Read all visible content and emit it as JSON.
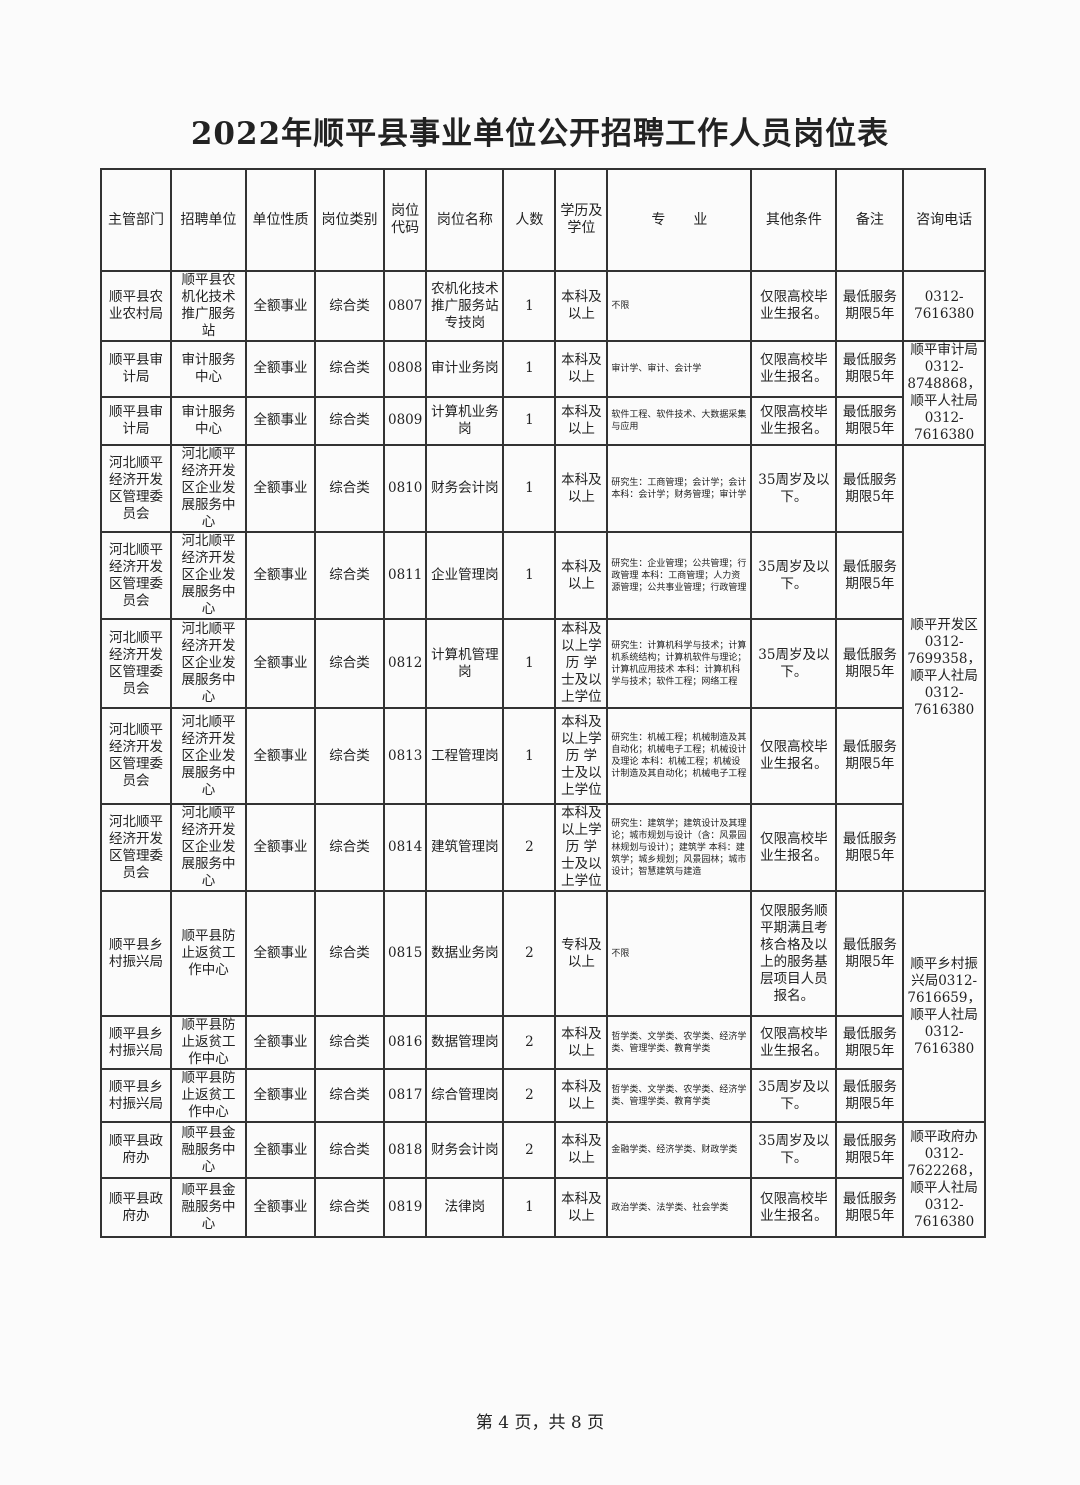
{
  "title": "2022年顺平县事业单位公开招聘工作人员岗位表",
  "headers": [
    "主管部门",
    "招聘单位",
    "单位性质",
    "岗位类别",
    "岗位代码",
    "岗位名称",
    "人数",
    "学历及学位",
    "专　　业",
    "其他条件",
    "备注",
    "咨询电话"
  ],
  "rows": [
    {
      "dept": "顺平县农业农村局",
      "unit": "顺平县农机化技术推广服务站",
      "nature": "全额事业",
      "category": "综合类",
      "code": "0807",
      "post": "农机化技术推广服务站专技岗",
      "count": "1",
      "edu": "本科及以上",
      "major": "不限",
      "other": "仅限高校毕业生报名。",
      "note": "最低服务期限5年"
    },
    {
      "dept": "顺平县审计局",
      "unit": "审计服务中心",
      "nature": "全额事业",
      "category": "综合类",
      "code": "0808",
      "post": "审计业务岗",
      "count": "1",
      "edu": "本科及以上",
      "major": "审计学、审计、会计学",
      "other": "仅限高校毕业生报名。",
      "note": "最低服务期限5年"
    },
    {
      "dept": "顺平县审计局",
      "unit": "审计服务中心",
      "nature": "全额事业",
      "category": "综合类",
      "code": "0809",
      "post": "计算机业务岗",
      "count": "1",
      "edu": "本科及以上",
      "major": "软件工程、软件技术、大数据采集与应用",
      "other": "仅限高校毕业生报名。",
      "note": "最低服务期限5年"
    },
    {
      "dept": "河北顺平经济开发区管理委员会",
      "unit": "河北顺平经济开发区企业发展服务中心",
      "nature": "全额事业",
      "category": "综合类",
      "code": "0810",
      "post": "财务会计岗",
      "count": "1",
      "edu": "本科及以上",
      "major": "研究生：工商管理；会计学；会计 本科：会计学；财务管理；审计学",
      "other": "35周岁及以下。",
      "note": "最低服务期限5年"
    },
    {
      "dept": "河北顺平经济开发区管理委员会",
      "unit": "河北顺平经济开发区企业发展服务中心",
      "nature": "全额事业",
      "category": "综合类",
      "code": "0811",
      "post": "企业管理岗",
      "count": "1",
      "edu": "本科及以上",
      "major": "研究生：企业管理；公共管理；行政管理 本科：工商管理；人力资源管理；公共事业管理；行政管理",
      "other": "35周岁及以下。",
      "note": "最低服务期限5年"
    },
    {
      "dept": "河北顺平经济开发区管理委员会",
      "unit": "河北顺平经济开发区企业发展服务中心",
      "nature": "全额事业",
      "category": "综合类",
      "code": "0812",
      "post": "计算机管理岗",
      "count": "1",
      "edu": "本科及以上学历 学士及以上学位",
      "major": "研究生：计算机科学与技术；计算机系统结构；计算机软件与理论；计算机应用技术 本科：计算机科学与技术；软件工程；网络工程",
      "other": "35周岁及以下。",
      "note": "最低服务期限5年"
    },
    {
      "dept": "河北顺平经济开发区管理委员会",
      "unit": "河北顺平经济开发区企业发展服务中心",
      "nature": "全额事业",
      "category": "综合类",
      "code": "0813",
      "post": "工程管理岗",
      "count": "1",
      "edu": "本科及以上学历 学士及以上学位",
      "major": "研究生：机械工程；机械制造及其自动化；机械电子工程；机械设计及理论 本科：机械工程；机械设计制造及其自动化；机械电子工程",
      "other": "仅限高校毕业生报名。",
      "note": "最低服务期限5年"
    },
    {
      "dept": "河北顺平经济开发区管理委员会",
      "unit": "河北顺平经济开发区企业发展服务中心",
      "nature": "全额事业",
      "category": "综合类",
      "code": "0814",
      "post": "建筑管理岗",
      "count": "2",
      "edu": "本科及以上学历 学士及以上学位",
      "major": "研究生：建筑学；建筑设计及其理论；城市规划与设计（含：风景园林规划与设计）；建筑学 本科：建筑学；城乡规划；风景园林；城市设计；智慧建筑与建造",
      "other": "仅限高校毕业生报名。",
      "note": "最低服务期限5年"
    },
    {
      "dept": "顺平县乡村振兴局",
      "unit": "顺平县防止返贫工作中心",
      "nature": "全额事业",
      "category": "综合类",
      "code": "0815",
      "post": "数据业务岗",
      "count": "2",
      "edu": "专科及以上",
      "major": "不限",
      "other": "仅限服务顺平期满且考核合格及以上的服务基层项目人员报名。",
      "note": "最低服务期限5年"
    },
    {
      "dept": "顺平县乡村振兴局",
      "unit": "顺平县防止返贫工作中心",
      "nature": "全额事业",
      "category": "综合类",
      "code": "0816",
      "post": "数据管理岗",
      "count": "2",
      "edu": "本科及以上",
      "major": "哲学类、文学类、农学类、经济学类、管理学类、教育学类",
      "other": "仅限高校毕业生报名。",
      "note": "最低服务期限5年"
    },
    {
      "dept": "顺平县乡村振兴局",
      "unit": "顺平县防止返贫工作中心",
      "nature": "全额事业",
      "category": "综合类",
      "code": "0817",
      "post": "综合管理岗",
      "count": "2",
      "edu": "本科及以上",
      "major": "哲学类、文学类、农学类、经济学类、管理学类、教育学类",
      "other": "35周岁及以下。",
      "note": "最低服务期限5年"
    },
    {
      "dept": "顺平县政府办",
      "unit": "顺平县金融服务中心",
      "nature": "全额事业",
      "category": "综合类",
      "code": "0818",
      "post": "财务会计岗",
      "count": "2",
      "edu": "本科及以上",
      "major": "金融学类、经济学类、财政学类",
      "other": "35周岁及以下。",
      "note": "最低服务期限5年"
    },
    {
      "dept": "顺平县政府办",
      "unit": "顺平县金融服务中心",
      "nature": "全额事业",
      "category": "综合类",
      "code": "0819",
      "post": "法律岗",
      "count": "1",
      "edu": "本科及以上",
      "major": "政治学类、法学类、社会学类",
      "other": "仅限高校毕业生报名。",
      "note": "最低服务期限5年"
    }
  ],
  "phones": [
    "0312-7616380",
    "顺平审计局0312-8748868，顺平人社局0312-7616380",
    "顺平开发区0312-7699358，顺平人社局0312-7616380",
    "顺平乡村振兴局0312-7616659，顺平人社局0312-7616380",
    "顺平政府办0312-7622268，顺平人社局0312-7616380"
  ],
  "footer": "第 4 页，共 8 页"
}
